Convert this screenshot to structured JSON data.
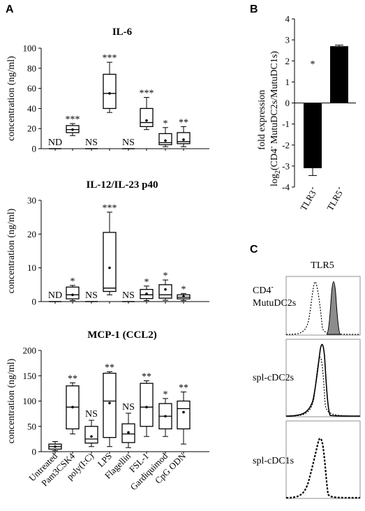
{
  "panel_labels": {
    "a": "A",
    "b": "B",
    "c": "C"
  },
  "chart_data": [
    {
      "type": "box",
      "title": "IL-6",
      "ylabel": "concentration (ng/ml)",
      "ylim": [
        0,
        100
      ],
      "yticks": [
        "0",
        "20",
        "40",
        "60",
        "80",
        "100"
      ],
      "categories": [
        "Untreated",
        "Pam3CSK4",
        "poly(I:C)",
        "LPS",
        "Flagellin",
        "FSL-1",
        "Gardiquimod",
        "CpG ODN"
      ],
      "boxes": [
        {
          "min": 0,
          "q1": 0,
          "median": 0,
          "q3": 0,
          "max": 0,
          "mean": null
        },
        {
          "min": 13,
          "q1": 16,
          "median": 19,
          "q3": 23,
          "max": 25,
          "mean": 19
        },
        {
          "min": 0,
          "q1": 0,
          "median": 0,
          "q3": 0,
          "max": 0,
          "mean": null
        },
        {
          "min": 36,
          "q1": 40,
          "median": 55,
          "q3": 74,
          "max": 86,
          "mean": 55
        },
        {
          "min": 0,
          "q1": 0,
          "median": 0,
          "q3": 0,
          "max": 0,
          "mean": null
        },
        {
          "min": 19,
          "q1": 22,
          "median": 26,
          "q3": 40,
          "max": 51,
          "mean": 28
        },
        {
          "min": 2,
          "q1": 4,
          "median": 6,
          "q3": 15,
          "max": 21,
          "mean": 8
        },
        {
          "min": 2,
          "q1": 5,
          "median": 7,
          "q3": 16,
          "max": 22,
          "mean": 9
        }
      ],
      "annotations": [
        "ND",
        "***",
        "NS",
        "***",
        "NS",
        "***",
        "*",
        "**"
      ]
    },
    {
      "type": "box",
      "title": "IL-12/IL-23 p40",
      "ylabel": "concentration (ng/ml)",
      "ylim": [
        0,
        30
      ],
      "yticks": [
        "0",
        "10",
        "20",
        "30"
      ],
      "categories": [
        "Untreated",
        "Pam3CSK4",
        "poly(I:C)",
        "LPS",
        "Flagellin",
        "FSL-1",
        "Gardiquimod",
        "CpG ODN"
      ],
      "boxes": [
        {
          "min": 0,
          "q1": 0,
          "median": 0,
          "q3": 0,
          "max": 0,
          "mean": null
        },
        {
          "min": 0.3,
          "q1": 0.8,
          "median": 2,
          "q3": 4.3,
          "max": 4.8,
          "mean": 2
        },
        {
          "min": 0,
          "q1": 0,
          "median": 0,
          "q3": 0,
          "max": 0,
          "mean": null
        },
        {
          "min": 2,
          "q1": 3,
          "median": 4,
          "q3": 20.5,
          "max": 26.5,
          "mean": 10
        },
        {
          "min": 0,
          "q1": 0,
          "median": 0,
          "q3": 0,
          "max": 0,
          "mean": null
        },
        {
          "min": 0.3,
          "q1": 0.9,
          "median": 2,
          "q3": 3.6,
          "max": 4.6,
          "mean": 2.3
        },
        {
          "min": 0.4,
          "q1": 1,
          "median": 2,
          "q3": 5,
          "max": 6.4,
          "mean": 3.6
        },
        {
          "min": 0.3,
          "q1": 0.8,
          "median": 1.3,
          "q3": 2,
          "max": 2.4,
          "mean": 1.5
        }
      ],
      "annotations": [
        "ND",
        "*",
        "NS",
        "***",
        "NS",
        "*",
        "*",
        "*"
      ]
    },
    {
      "type": "box",
      "title": "MCP-1 (CCL2)",
      "ylabel": "concentration (ng/ml)",
      "ylim": [
        0,
        200
      ],
      "yticks": [
        "0",
        "50",
        "100",
        "150",
        "200"
      ],
      "categories": [
        "Untreated",
        "Pam3CSK4",
        "poly(I:C)",
        "LPS",
        "Flagellin",
        "FSL-1",
        "Gardiquimod",
        "CpG ODN"
      ],
      "boxes": [
        {
          "min": 2,
          "q1": 5,
          "median": 10,
          "q3": 15,
          "max": 20,
          "mean": 10
        },
        {
          "min": 35,
          "q1": 45,
          "median": 88,
          "q3": 130,
          "max": 136,
          "mean": 88
        },
        {
          "min": 10,
          "q1": 17,
          "median": 25,
          "q3": 50,
          "max": 62,
          "mean": 30
        },
        {
          "min": 10,
          "q1": 28,
          "median": 100,
          "q3": 155,
          "max": 158,
          "mean": 96
        },
        {
          "min": 8,
          "q1": 18,
          "median": 35,
          "q3": 55,
          "max": 76,
          "mean": 38
        },
        {
          "min": 30,
          "q1": 50,
          "median": 88,
          "q3": 135,
          "max": 140,
          "mean": 88
        },
        {
          "min": 30,
          "q1": 45,
          "median": 70,
          "q3": 95,
          "max": 105,
          "mean": 70
        },
        {
          "min": 15,
          "q1": 45,
          "median": 85,
          "q3": 100,
          "max": 118,
          "mean": 78
        }
      ],
      "annotations": [
        "",
        "**",
        "NS",
        "**",
        "NS",
        "**",
        "*",
        "**"
      ]
    },
    {
      "type": "bar",
      "ylabel_main": "fold expression",
      "ylabel_log": "log",
      "ylabel_sub": "2",
      "ylabel_rest": "(CD4",
      "ylabel_sup": "-",
      "ylabel_tail": " MutuDC2s/MutuDC1s)",
      "ylim": [
        -4,
        4
      ],
      "yticks": [
        "4",
        "3",
        "2",
        "1",
        "0",
        "-1",
        "-2",
        "-3",
        "-4"
      ],
      "categories": [
        "TLR3",
        "TLR5"
      ],
      "values": [
        -3.1,
        2.7
      ],
      "errors": [
        0.35,
        0.05
      ],
      "annotations": [
        "*",
        "*"
      ]
    },
    {
      "type": "histogram",
      "title": "TLR5",
      "rows": [
        {
          "label_line1": "CD4",
          "label_sup": "-",
          "label_line2": "MutuDC2s"
        },
        {
          "label_line1": "spl-cDC2s",
          "label_sup": "",
          "label_line2": ""
        },
        {
          "label_line1": "spl-cDC1s",
          "label_sup": "",
          "label_line2": ""
        }
      ]
    }
  ]
}
